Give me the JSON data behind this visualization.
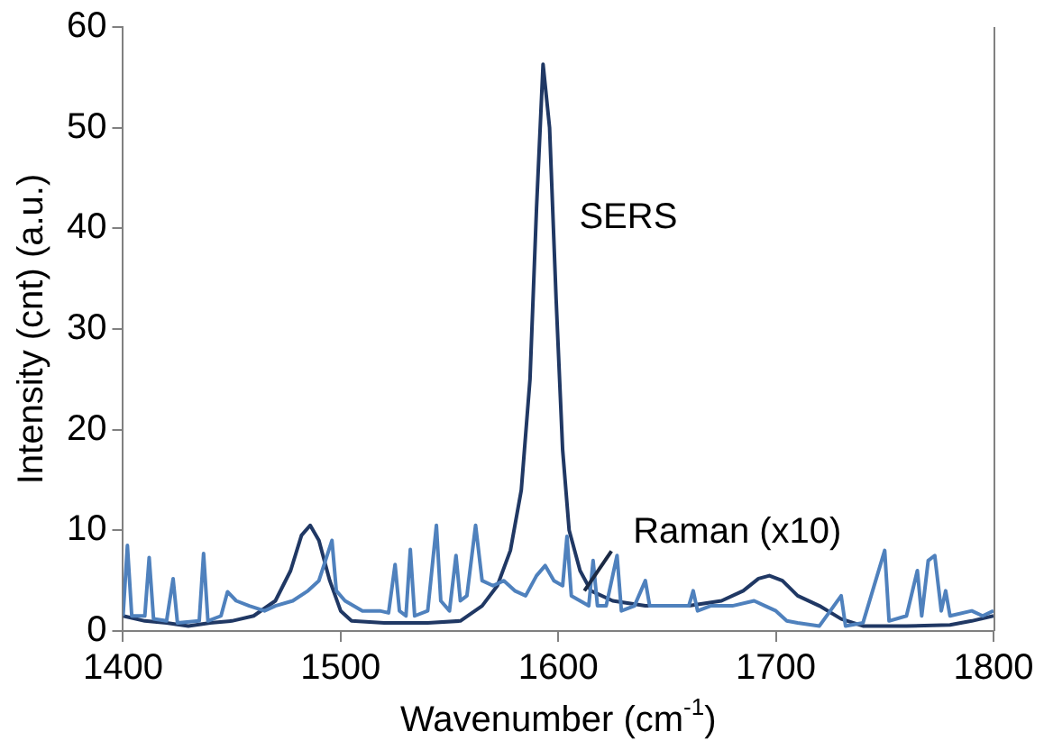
{
  "chart_data": {
    "type": "line",
    "xlabel": "Wavenumber (cm$^{-1}$)",
    "ylabel": "Intensity (cnt) (a.u.)",
    "xlim": [
      1400,
      1800
    ],
    "xticks": [
      1400,
      1500,
      1600,
      1700,
      1800
    ],
    "ylim": [
      0,
      60
    ],
    "yticks": [
      0,
      10,
      20,
      30,
      40,
      50,
      60
    ],
    "grid": false,
    "legend": false,
    "marker": "none",
    "line_style": "solid",
    "series": [
      {
        "color": "#4f81bd",
        "x": [
          1400,
          1402,
          1404,
          1410,
          1412,
          1414,
          1420,
          1423,
          1425,
          1435,
          1437,
          1439,
          1445,
          1448,
          1452,
          1458,
          1465,
          1470,
          1478,
          1485,
          1490,
          1493,
          1496,
          1498,
          1502,
          1510,
          1518,
          1522,
          1525,
          1527,
          1530,
          1532,
          1534,
          1540,
          1544,
          1546,
          1550,
          1553,
          1555,
          1558,
          1562,
          1565,
          1570,
          1575,
          1580,
          1585,
          1590,
          1594,
          1598,
          1602,
          1604,
          1606,
          1610,
          1614,
          1616,
          1618,
          1622,
          1627,
          1629,
          1635,
          1640,
          1642,
          1650,
          1660,
          1662,
          1664,
          1670,
          1680,
          1690,
          1695,
          1700,
          1705,
          1710,
          1720,
          1730,
          1732,
          1740,
          1750,
          1752,
          1760,
          1765,
          1767,
          1770,
          1773,
          1776,
          1778,
          1780,
          1790,
          1795,
          1800
        ],
        "values": [
          1.5,
          8.5,
          1.5,
          1.5,
          7.3,
          1.2,
          1.0,
          5.2,
          0.8,
          1.0,
          7.7,
          1.0,
          1.5,
          3.9,
          3,
          2.5,
          2,
          2.5,
          3,
          4,
          5,
          7,
          9,
          4,
          3,
          2,
          2,
          1.8,
          6.6,
          2,
          1.5,
          8.1,
          1.5,
          2,
          10.5,
          3,
          2,
          7.5,
          3,
          3.5,
          10.5,
          5,
          4.5,
          5,
          4,
          3.5,
          5.5,
          6.5,
          5,
          4.5,
          9.4,
          3.5,
          3,
          2.5,
          7,
          2.5,
          2.5,
          7.5,
          2,
          2.5,
          5,
          2.5,
          2.5,
          2.5,
          4,
          2,
          2.5,
          2.5,
          3,
          2.5,
          2,
          1,
          0.8,
          0.5,
          3.5,
          0.5,
          0.8,
          8,
          1,
          1.5,
          6,
          1.5,
          7,
          7.5,
          2,
          4,
          1.5,
          2,
          1.5,
          2
        ]
      },
      {
        "color": "#203864",
        "x": [
          1400,
          1410,
          1420,
          1430,
          1440,
          1450,
          1460,
          1470,
          1477,
          1482,
          1486,
          1490,
          1495,
          1500,
          1505,
          1520,
          1540,
          1555,
          1565,
          1572,
          1578,
          1583,
          1587,
          1590,
          1593,
          1596,
          1599,
          1602,
          1605,
          1610,
          1615,
          1625,
          1640,
          1660,
          1675,
          1685,
          1692,
          1697,
          1703,
          1710,
          1720,
          1730,
          1740,
          1760,
          1780,
          1790,
          1800
        ],
        "values": [
          1.5,
          1.0,
          0.8,
          0.5,
          0.8,
          1.0,
          1.5,
          3,
          6,
          9.5,
          10.5,
          9,
          5,
          2,
          1,
          0.8,
          0.8,
          1,
          2.5,
          4.5,
          8,
          14,
          25,
          42,
          56.3,
          50,
          33,
          18,
          10,
          6,
          4,
          3,
          2.5,
          2.5,
          3,
          4,
          5.2,
          5.5,
          5,
          3.5,
          2.5,
          1.2,
          0.5,
          0.5,
          0.6,
          1,
          1.5
        ]
      }
    ],
    "annotations": [
      {
        "text": "SERS",
        "x": 1598,
        "y": 41
      },
      {
        "text": "Raman (x10)",
        "x": 1612,
        "y": 4
      }
    ]
  }
}
